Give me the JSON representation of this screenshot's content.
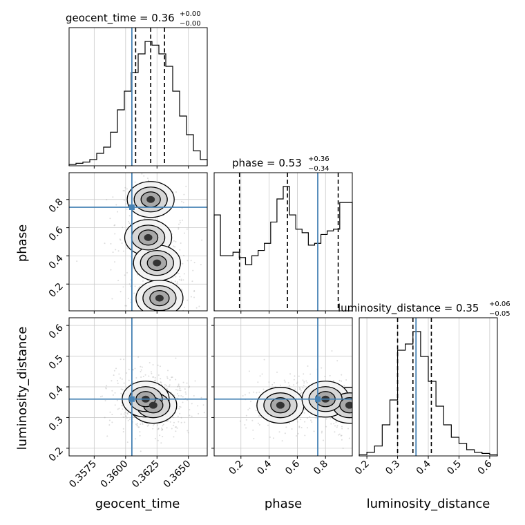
{
  "chart_data": {
    "type": "corner",
    "parameters": [
      "geocent_time",
      "phase",
      "luminosity_distance"
    ],
    "truths": {
      "geocent_time": 0.3605,
      "phase": 0.745,
      "luminosity_distance": 0.36
    },
    "truth_color": "#4682b4",
    "ranges": {
      "geocent_time": [
        0.3555,
        0.3665
      ],
      "phase": [
        0.01,
        0.99
      ],
      "luminosity_distance": [
        0.175,
        0.625
      ]
    },
    "ticks": {
      "geocent_time": {
        "values": [
          0.3575,
          0.36,
          0.3625,
          0.365
        ],
        "labels": [
          "0.3575",
          "0.3600",
          "0.3625",
          "0.3650"
        ]
      },
      "phase": {
        "values": [
          0.2,
          0.4,
          0.6,
          0.8
        ],
        "labels": [
          "0.2",
          "0.4",
          "0.6",
          "0.8"
        ]
      },
      "luminosity_distance": {
        "values": [
          0.2,
          0.3,
          0.4,
          0.5,
          0.6
        ],
        "labels": [
          "0.2",
          "0.3",
          "0.4",
          "0.5",
          "0.6"
        ]
      }
    },
    "titles": [
      {
        "param": "geocent_time",
        "label": "geocent_time = 0.36",
        "plus": "+0.00",
        "minus": "−0.00"
      },
      {
        "param": "phase",
        "label": "phase = 0.53",
        "plus": "+0.36",
        "minus": "−0.34"
      },
      {
        "param": "luminosity_distance",
        "label": "luminosity_distance = 0.35",
        "plus": "+0.06",
        "minus": "−0.05"
      }
    ],
    "quantiles": {
      "geocent_time": [
        0.3608,
        0.362,
        0.3631
      ],
      "phase": [
        0.19,
        0.53,
        0.89
      ],
      "luminosity_distance": [
        0.3,
        0.35,
        0.41
      ]
    },
    "histograms": {
      "geocent_time": [
        1,
        2,
        3,
        5,
        10,
        15,
        27,
        45,
        60,
        75,
        90,
        100,
        97,
        90,
        80,
        60,
        40,
        25,
        12,
        5
      ],
      "phase": [
        54,
        31,
        31,
        33,
        30,
        26,
        31,
        34,
        38,
        50,
        63,
        70,
        54,
        46,
        44,
        37,
        38,
        43,
        45,
        46,
        61,
        61
      ],
      "luminosity_distance": [
        1,
        3,
        8,
        25,
        45,
        85,
        90,
        100,
        80,
        60,
        40,
        25,
        15,
        10,
        5,
        3,
        2,
        1
      ]
    },
    "density_modes": [
      {
        "x": "geocent_time",
        "y": "phase",
        "points": [
          [
            0.3618,
            0.53
          ],
          [
            0.362,
            0.8
          ],
          [
            0.3625,
            0.35
          ],
          [
            0.3627,
            0.1
          ]
        ]
      },
      {
        "x": "geocent_time",
        "y": "luminosity_distance",
        "points": [
          [
            0.3622,
            0.34
          ],
          [
            0.3616,
            0.36
          ]
        ]
      },
      {
        "x": "phase",
        "y": "luminosity_distance",
        "points": [
          [
            0.48,
            0.34
          ],
          [
            0.97,
            0.34
          ],
          [
            0.8,
            0.36
          ]
        ]
      }
    ]
  }
}
